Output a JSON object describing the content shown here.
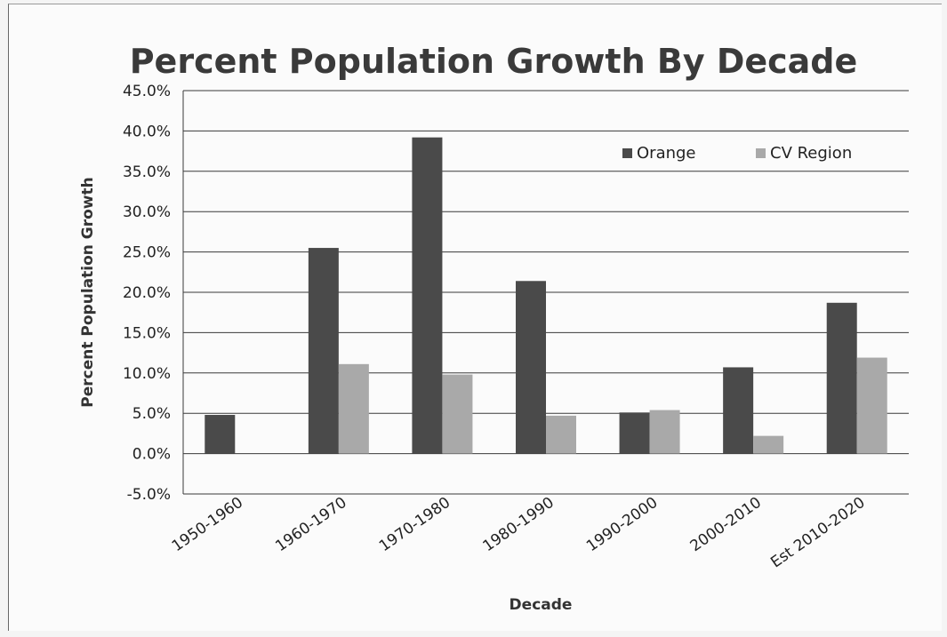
{
  "chart_data": {
    "type": "bar",
    "title": "Percent Population Growth By Decade",
    "xlabel": "Decade",
    "ylabel": "Percent Population  Growth",
    "categories": [
      "1950-1960",
      "1960-1970",
      "1970-1980",
      "1980-1990",
      "1990-2000",
      "2000-2010",
      "Est 2010-2020"
    ],
    "series": [
      {
        "name": "Orange",
        "values": [
          4.8,
          25.5,
          39.2,
          21.4,
          5.1,
          10.7,
          18.7
        ]
      },
      {
        "name": "CV Region",
        "values": [
          null,
          11.1,
          9.8,
          4.7,
          5.4,
          2.2,
          11.9
        ]
      }
    ],
    "ylim": [
      -5,
      45
    ],
    "ytick_step": 5,
    "ytick_labels": [
      "-5.0%",
      "0.0%",
      "5.0%",
      "10.0%",
      "15.0%",
      "20.0%",
      "25.0%",
      "30.0%",
      "35.0%",
      "40.0%",
      "45.0%"
    ],
    "grid": true,
    "legend_position": "top-right",
    "colors": {
      "Orange": "#4a4a4a",
      "CV Region": "#a9a9a9"
    }
  }
}
